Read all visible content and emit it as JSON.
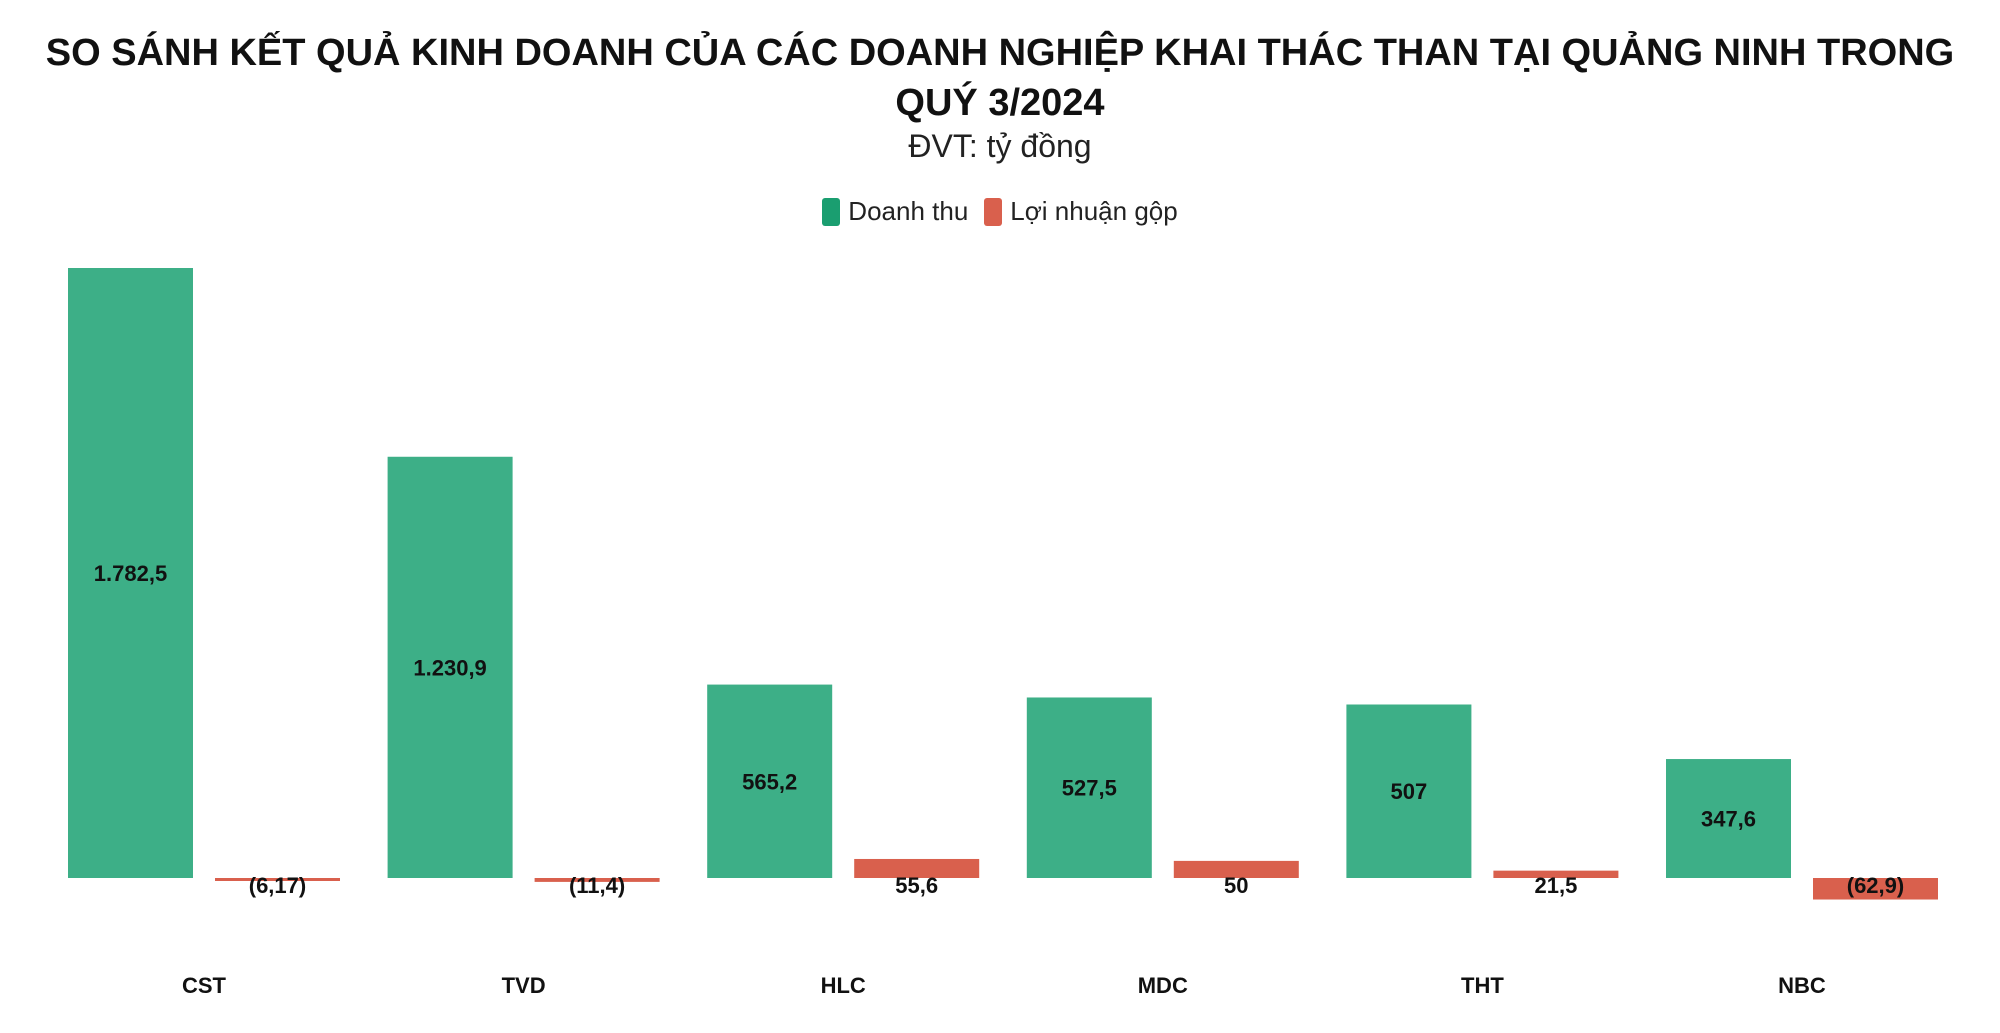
{
  "chart_data": {
    "type": "bar",
    "title": "SO SÁNH KẾT QUẢ KINH DOANH CỦA CÁC DOANH NGHIỆP KHAI THÁC THAN TẠI QUẢNG NINH TRONG QUÝ 3/2024",
    "subtitle": "ĐVT: tỷ đồng",
    "categories": [
      "CST",
      "TVD",
      "HLC",
      "MDC",
      "THT",
      "NBC"
    ],
    "series": [
      {
        "name": "Doanh thu",
        "color": "#3daf87",
        "values": [
          1782.5,
          1230.9,
          565.2,
          527.5,
          507,
          347.6
        ],
        "labels": [
          "1.782,5",
          "1.230,9",
          "565,2",
          "527,5",
          "507",
          "347,6"
        ]
      },
      {
        "name": "Lợi nhuận gộp",
        "color": "#d9604d",
        "values": [
          -6.17,
          -11.4,
          55.6,
          50,
          21.5,
          -62.9
        ],
        "labels": [
          "(6,17)",
          "(11,4)",
          "55,6",
          "50",
          "21,5",
          "(62,9)"
        ]
      }
    ],
    "ylim": [
      -62.9,
      1782.5
    ],
    "grid": false,
    "legend_position": "top-center"
  }
}
